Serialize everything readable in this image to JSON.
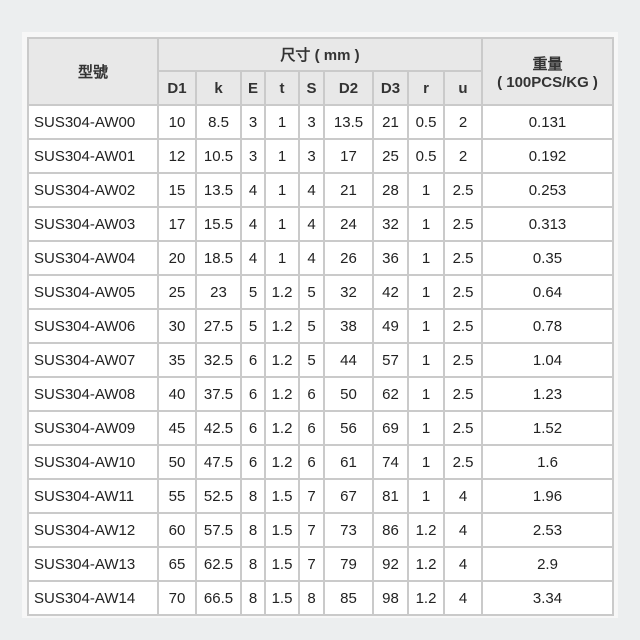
{
  "header": {
    "model": "型號",
    "dimensions": "尺寸 ( mm )",
    "weight_line1": "重量",
    "weight_line2": "( 100PCS/KG )",
    "columns": [
      "D1",
      "k",
      "E",
      "t",
      "S",
      "D2",
      "D3",
      "r",
      "u"
    ]
  },
  "rows": [
    [
      "SUS304-AW00",
      "10",
      "8.5",
      "3",
      "1",
      "3",
      "13.5",
      "21",
      "0.5",
      "2",
      "0.131"
    ],
    [
      "SUS304-AW01",
      "12",
      "10.5",
      "3",
      "1",
      "3",
      "17",
      "25",
      "0.5",
      "2",
      "0.192"
    ],
    [
      "SUS304-AW02",
      "15",
      "13.5",
      "4",
      "1",
      "4",
      "21",
      "28",
      "1",
      "2.5",
      "0.253"
    ],
    [
      "SUS304-AW03",
      "17",
      "15.5",
      "4",
      "1",
      "4",
      "24",
      "32",
      "1",
      "2.5",
      "0.313"
    ],
    [
      "SUS304-AW04",
      "20",
      "18.5",
      "4",
      "1",
      "4",
      "26",
      "36",
      "1",
      "2.5",
      "0.35"
    ],
    [
      "SUS304-AW05",
      "25",
      "23",
      "5",
      "1.2",
      "5",
      "32",
      "42",
      "1",
      "2.5",
      "0.64"
    ],
    [
      "SUS304-AW06",
      "30",
      "27.5",
      "5",
      "1.2",
      "5",
      "38",
      "49",
      "1",
      "2.5",
      "0.78"
    ],
    [
      "SUS304-AW07",
      "35",
      "32.5",
      "6",
      "1.2",
      "5",
      "44",
      "57",
      "1",
      "2.5",
      "1.04"
    ],
    [
      "SUS304-AW08",
      "40",
      "37.5",
      "6",
      "1.2",
      "6",
      "50",
      "62",
      "1",
      "2.5",
      "1.23"
    ],
    [
      "SUS304-AW09",
      "45",
      "42.5",
      "6",
      "1.2",
      "6",
      "56",
      "69",
      "1",
      "2.5",
      "1.52"
    ],
    [
      "SUS304-AW10",
      "50",
      "47.5",
      "6",
      "1.2",
      "6",
      "61",
      "74",
      "1",
      "2.5",
      "1.6"
    ],
    [
      "SUS304-AW11",
      "55",
      "52.5",
      "8",
      "1.5",
      "7",
      "67",
      "81",
      "1",
      "4",
      "1.96"
    ],
    [
      "SUS304-AW12",
      "60",
      "57.5",
      "8",
      "1.5",
      "7",
      "73",
      "86",
      "1.2",
      "4",
      "2.53"
    ],
    [
      "SUS304-AW13",
      "65",
      "62.5",
      "8",
      "1.5",
      "7",
      "79",
      "92",
      "1.2",
      "4",
      "2.9"
    ],
    [
      "SUS304-AW14",
      "70",
      "66.5",
      "8",
      "1.5",
      "8",
      "85",
      "98",
      "1.2",
      "4",
      "3.34"
    ]
  ]
}
